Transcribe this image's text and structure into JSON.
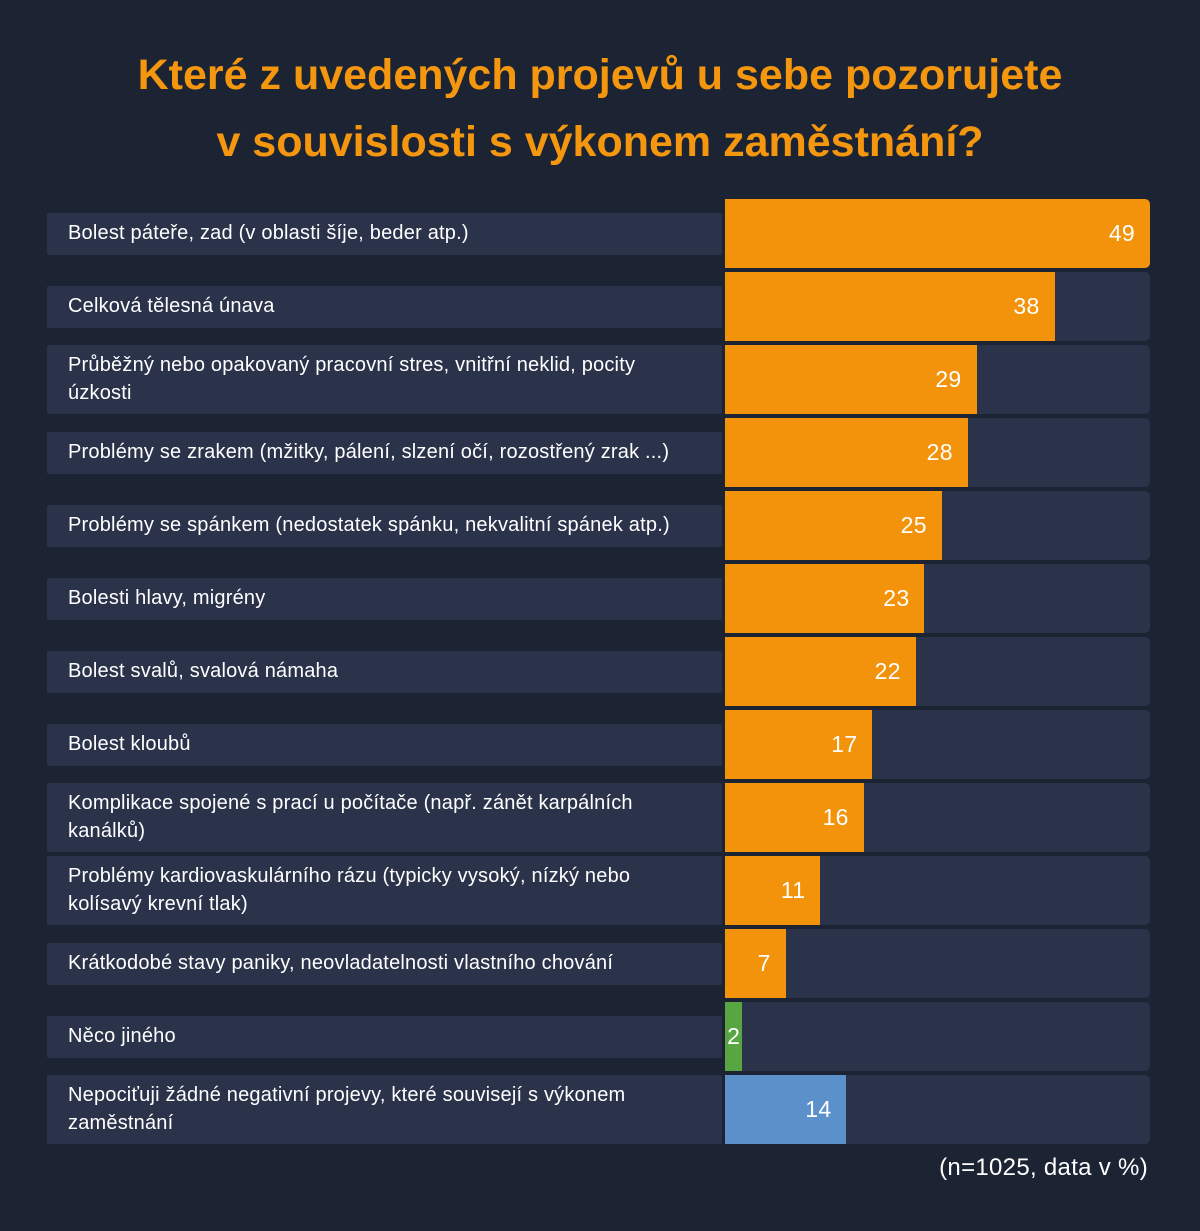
{
  "title_lines": [
    "Které z uvedených projevů u sebe pozorujete",
    "v souvislosti s výkonem zaměstnání?"
  ],
  "footnote": "(n=1025, data v %)",
  "colors": {
    "background": "#1C2434",
    "panel": "#2A334A",
    "title": "#F5960F",
    "text": "#FFFFFF",
    "orange": "#F2930B",
    "green": "#57A642",
    "blue": "#5B90CB"
  },
  "chart_data": {
    "type": "bar",
    "orientation": "horizontal",
    "unit": "%",
    "xlim": [
      0,
      49
    ],
    "grid": false,
    "legend": false,
    "categories": [
      "Bolest páteře, zad (v oblasti šíje, beder atp.)",
      "Celková tělesná únava",
      "Průběžný nebo opakovaný pracovní stres, vnitřní neklid, pocity úzkosti",
      "Problémy se zrakem (mžitky, pálení, slzení očí, rozostřený zrak ...)",
      "Problémy se spánkem (nedostatek spánku, nekvalitní spánek atp.)",
      "Bolesti hlavy, migrény",
      "Bolest svalů, svalová námaha",
      "Bolest kloubů",
      "Komplikace spojené s prací u počítače (např. zánět karpálních kanálků)",
      "Problémy kardiovaskulárního rázu (typicky vysoký, nízký nebo kolísavý krevní tlak)",
      "Krátkodobé stavy paniky, neovladatelnosti vlastního chování",
      "Něco jiného",
      "Nepociťuji žádné negativní projevy, které souvisejí s výkonem zaměstnání"
    ],
    "values": [
      49,
      38,
      29,
      28,
      25,
      23,
      22,
      17,
      16,
      11,
      7,
      2,
      14
    ],
    "bar_colors": [
      "orange",
      "orange",
      "orange",
      "orange",
      "orange",
      "orange",
      "orange",
      "orange",
      "orange",
      "orange",
      "orange",
      "green",
      "blue"
    ]
  }
}
